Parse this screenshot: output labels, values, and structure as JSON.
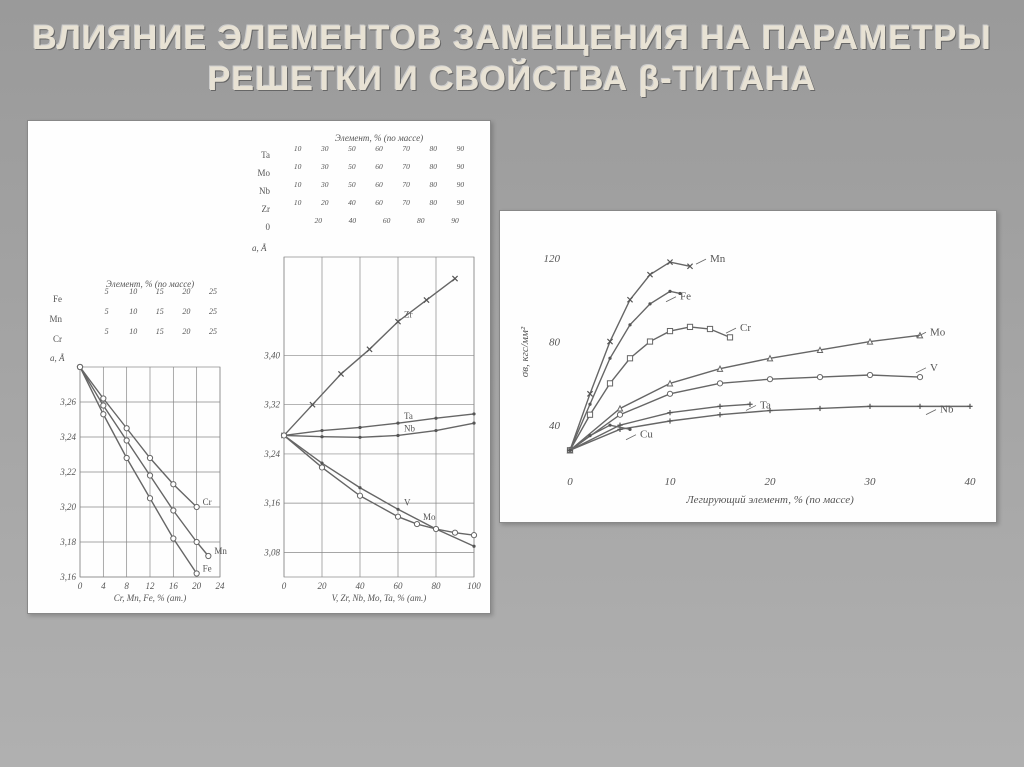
{
  "title": "ВЛИЯНИЕ ЭЛЕМЕНТОВ ЗАМЕЩЕНИЯ НА ПАРАМЕТРЫ РЕШЕТКИ И СВОЙСТВА β-ТИТАНА",
  "colors": {
    "background": "#a0a0a0",
    "card": "#fefefe",
    "ink": "#666666",
    "grid": "#888888",
    "curve": "#666666",
    "title_fill": "#e8e2d4"
  },
  "chart1": {
    "top_label": "Элемент, % (по массе)",
    "scales": [
      {
        "label": "Fe",
        "ticks": [
          "5",
          "10",
          "15",
          "20",
          "25"
        ]
      },
      {
        "label": "Mn",
        "ticks": [
          "5",
          "10",
          "15",
          "20",
          "25"
        ]
      },
      {
        "label": "Cr",
        "ticks": [
          "5",
          "10",
          "15",
          "20",
          "25"
        ]
      }
    ],
    "ylabel": "a, Å",
    "yticks": [
      "3,26",
      "3,24",
      "3,22",
      "3,20",
      "3,18",
      "3,16"
    ],
    "xlabel": "Cr, Mn, Fe, % (ат.)",
    "xticks": [
      "0",
      "4",
      "8",
      "12",
      "16",
      "20",
      "24"
    ],
    "series": [
      {
        "name": "Cr",
        "points": [
          [
            0,
            3.28
          ],
          [
            4,
            3.262
          ],
          [
            8,
            3.245
          ],
          [
            12,
            3.228
          ],
          [
            16,
            3.213
          ],
          [
            20,
            3.2
          ]
        ]
      },
      {
        "name": "Mn",
        "points": [
          [
            0,
            3.28
          ],
          [
            4,
            3.258
          ],
          [
            8,
            3.238
          ],
          [
            12,
            3.218
          ],
          [
            16,
            3.198
          ],
          [
            20,
            3.18
          ],
          [
            22,
            3.172
          ]
        ]
      },
      {
        "name": "Fe",
        "points": [
          [
            0,
            3.28
          ],
          [
            4,
            3.253
          ],
          [
            8,
            3.228
          ],
          [
            12,
            3.205
          ],
          [
            16,
            3.182
          ],
          [
            20,
            3.162
          ]
        ]
      }
    ],
    "ylim": [
      3.16,
      3.28
    ],
    "xlim": [
      0,
      24
    ],
    "line_width": 1.4,
    "font_size": 9
  },
  "chart2": {
    "top_label": "Элемент, % (по массе)",
    "scales": [
      {
        "label": "Ta",
        "ticks": [
          "10",
          "30",
          "50",
          "60",
          "70",
          "80",
          "90"
        ]
      },
      {
        "label": "Mo",
        "ticks": [
          "10",
          "30",
          "50",
          "60",
          "70",
          "80",
          "90"
        ]
      },
      {
        "label": "Nb",
        "ticks": [
          "10",
          "30",
          "50",
          "60",
          "70",
          "80",
          "90"
        ]
      },
      {
        "label": "Zr",
        "ticks": [
          "10",
          "20",
          "40",
          "60",
          "70",
          "80",
          "90"
        ]
      }
    ],
    "ylabel": "a, Å",
    "yticks": [
      "3,40",
      "3,32",
      "3,24",
      "3,16",
      "3,08"
    ],
    "xlabel": "V, Zr, Nb, Mo, Ta, % (ат.)",
    "xticks": [
      "0",
      "20",
      "40",
      "60",
      "80",
      "100"
    ],
    "series": [
      {
        "name": "Zr",
        "marker": "x",
        "points": [
          [
            0,
            3.27
          ],
          [
            15,
            3.32
          ],
          [
            30,
            3.37
          ],
          [
            45,
            3.41
          ],
          [
            60,
            3.455
          ],
          [
            75,
            3.49
          ],
          [
            90,
            3.525
          ]
        ]
      },
      {
        "name": "Ta",
        "marker": "dot",
        "points": [
          [
            0,
            3.27
          ],
          [
            20,
            3.278
          ],
          [
            40,
            3.283
          ],
          [
            60,
            3.29
          ],
          [
            80,
            3.298
          ],
          [
            100,
            3.305
          ]
        ]
      },
      {
        "name": "Nb",
        "marker": "dot",
        "points": [
          [
            0,
            3.27
          ],
          [
            20,
            3.268
          ],
          [
            40,
            3.267
          ],
          [
            60,
            3.27
          ],
          [
            80,
            3.278
          ],
          [
            100,
            3.29
          ]
        ]
      },
      {
        "name": "V",
        "marker": "dot",
        "points": [
          [
            0,
            3.27
          ],
          [
            20,
            3.225
          ],
          [
            40,
            3.185
          ],
          [
            60,
            3.15
          ],
          [
            80,
            3.118
          ],
          [
            100,
            3.09
          ]
        ]
      },
      {
        "name": "Mo",
        "marker": "o",
        "points": [
          [
            0,
            3.27
          ],
          [
            20,
            3.218
          ],
          [
            40,
            3.172
          ],
          [
            60,
            3.138
          ],
          [
            70,
            3.126
          ],
          [
            80,
            3.118
          ],
          [
            90,
            3.112
          ],
          [
            100,
            3.108
          ]
        ]
      }
    ],
    "ylim": [
      3.04,
      3.56
    ],
    "xlim": [
      0,
      100
    ],
    "line_width": 1.4,
    "font_size": 9
  },
  "chart3": {
    "ylabel": "σв, кгс/мм²",
    "yticks": [
      "40",
      "80",
      "120"
    ],
    "xlabel": "Легирующий элемент, % (по массе)",
    "xticks": [
      "0",
      "10",
      "20",
      "30",
      "40"
    ],
    "series": [
      {
        "name": "Mn",
        "marker": "x",
        "points": [
          [
            0,
            28
          ],
          [
            2,
            55
          ],
          [
            4,
            80
          ],
          [
            6,
            100
          ],
          [
            8,
            112
          ],
          [
            10,
            118
          ],
          [
            12,
            116
          ]
        ]
      },
      {
        "name": "Fe",
        "marker": "dot",
        "points": [
          [
            0,
            28
          ],
          [
            2,
            50
          ],
          [
            4,
            72
          ],
          [
            6,
            88
          ],
          [
            8,
            98
          ],
          [
            10,
            104
          ],
          [
            11,
            103
          ]
        ]
      },
      {
        "name": "Cr",
        "marker": "sq",
        "points": [
          [
            0,
            28
          ],
          [
            2,
            45
          ],
          [
            4,
            60
          ],
          [
            6,
            72
          ],
          [
            8,
            80
          ],
          [
            10,
            85
          ],
          [
            12,
            87
          ],
          [
            14,
            86
          ],
          [
            16,
            82
          ]
        ]
      },
      {
        "name": "Mo",
        "marker": "tri",
        "points": [
          [
            0,
            28
          ],
          [
            5,
            48
          ],
          [
            10,
            60
          ],
          [
            15,
            67
          ],
          [
            20,
            72
          ],
          [
            25,
            76
          ],
          [
            30,
            80
          ],
          [
            35,
            83
          ]
        ]
      },
      {
        "name": "V",
        "marker": "o",
        "points": [
          [
            0,
            28
          ],
          [
            5,
            45
          ],
          [
            10,
            55
          ],
          [
            15,
            60
          ],
          [
            20,
            62
          ],
          [
            25,
            63
          ],
          [
            30,
            64
          ],
          [
            35,
            63
          ]
        ]
      },
      {
        "name": "Ta",
        "marker": "plus",
        "points": [
          [
            0,
            28
          ],
          [
            5,
            40
          ],
          [
            10,
            46
          ],
          [
            15,
            49
          ],
          [
            18,
            50
          ]
        ]
      },
      {
        "name": "Nb",
        "marker": "plus",
        "points": [
          [
            0,
            28
          ],
          [
            5,
            38
          ],
          [
            10,
            42
          ],
          [
            15,
            45
          ],
          [
            20,
            47
          ],
          [
            25,
            48
          ],
          [
            30,
            49
          ],
          [
            35,
            49
          ],
          [
            40,
            49
          ]
        ]
      },
      {
        "name": "Cu",
        "marker": "dot",
        "points": [
          [
            0,
            28
          ],
          [
            2,
            35
          ],
          [
            4,
            40
          ],
          [
            6,
            38
          ]
        ]
      }
    ],
    "ylim": [
      20,
      130
    ],
    "xlim": [
      0,
      40
    ],
    "line_width": 1.4,
    "font_size": 11,
    "label_positions": {
      "Mn": [
        14,
        118
      ],
      "Fe": [
        11,
        100
      ],
      "Cr": [
        17,
        85
      ],
      "Mo": [
        36,
        83
      ],
      "V": [
        36,
        66
      ],
      "Ta": [
        19,
        48
      ],
      "Nb": [
        37,
        46
      ],
      "Cu": [
        7,
        34
      ]
    }
  }
}
